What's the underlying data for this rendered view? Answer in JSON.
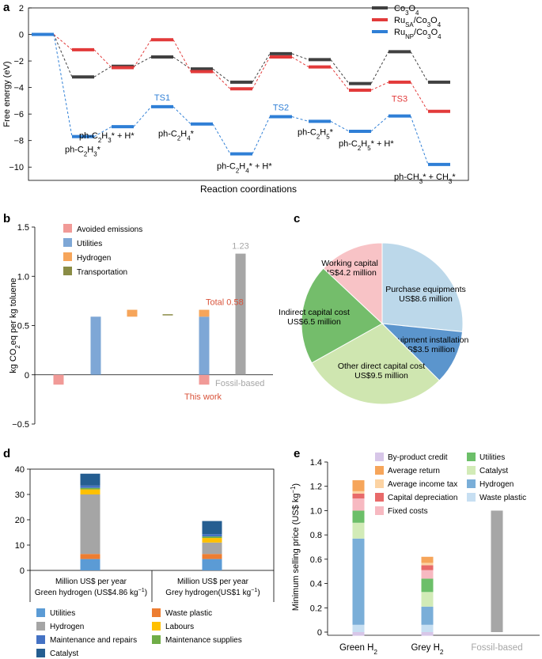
{
  "colors": {
    "co3o4": "#404040",
    "rusa": "#e23a3a",
    "runp": "#2f7fd6",
    "avoided": "#f19a97",
    "utilities": "#7ea7d6",
    "hydrogen": "#f6a55a",
    "transportation": "#8a8c45",
    "fossil": "#a6a6a6",
    "total_label": "#d9533a",
    "pie_working": "#f8c3c6",
    "pie_purchase": "#bcd8ea",
    "pie_install": "#5b95cd",
    "pie_other": "#cfe6b0",
    "pie_indirect": "#74bd6b",
    "d_utilities": "#5b9bd5",
    "d_hydrogen": "#a5a5a5",
    "d_maintenance_repairs": "#4472c4",
    "d_catalyst": "#255e91",
    "d_waste_plastic": "#ed7d31",
    "d_labours": "#ffc000",
    "d_maintenance_supplies": "#70ad47",
    "e_byproduct": "#d7c6e8",
    "e_avg_return": "#f6a55a",
    "e_avg_income_tax": "#fcd3a3",
    "e_capital_depr": "#e86a6a",
    "e_fixed": "#f7b9c1",
    "e_utilities": "#6cbf69",
    "e_catalyst": "#d2ebb7",
    "e_hydrogen": "#7aaed8",
    "e_waste_plastic": "#c7dff2",
    "e_fossil": "#a6a6a6"
  },
  "panel_labels": {
    "a": "a",
    "b": "b",
    "c": "c",
    "d": "d",
    "e": "e"
  },
  "chart_data": [
    {
      "id": "a",
      "type": "line",
      "title": "",
      "xlabel": "Reaction coordinations",
      "ylabel": "Free energy (eV)",
      "ylim": [
        -11,
        2
      ],
      "yticks": [
        2,
        0,
        -2,
        -4,
        -6,
        -8,
        -10
      ],
      "legend": [
        {
          "base": "Co",
          "sub1": "3",
          "mid": "O",
          "sub2": "4",
          "pre": "",
          "presub": ""
        },
        {
          "pre": "Ru",
          "presub": "SA",
          "base": "/Co",
          "sub1": "3",
          "mid": "O",
          "sub2": "4"
        },
        {
          "pre": "Ru",
          "presub": "NP",
          "base": "/Co",
          "sub1": "3",
          "mid": "O",
          "sub2": "4"
        }
      ],
      "series": [
        {
          "name": "Co3O4",
          "values": [
            0,
            -3.2,
            -2.4,
            -1.7,
            -2.6,
            -3.6,
            -1.45,
            -1.9,
            -3.7,
            -1.3,
            -3.6
          ]
        },
        {
          "name": "RuSA/Co3O4",
          "values": [
            0,
            -1.15,
            -2.5,
            -0.4,
            -2.8,
            -4.1,
            -1.7,
            -2.45,
            -4.2,
            -3.6,
            -5.8
          ]
        },
        {
          "name": "RuNP/Co3O4",
          "values": [
            0,
            -7.7,
            -6.95,
            -5.45,
            -6.75,
            -9.0,
            -6.2,
            -6.55,
            -7.3,
            -6.15,
            -9.8
          ]
        }
      ],
      "ts_labels": [
        "TS1",
        "TS2",
        "TS3"
      ],
      "state_labels": [
        "ph-C2H3*",
        "ph-C2H3* + H*",
        "ph-C2H4*",
        "ph-C2H4* + H*",
        "ph-C2H5*",
        "ph-C2H5* + H*",
        "ph-CH3* + CH3*"
      ]
    },
    {
      "id": "b",
      "type": "bar",
      "xlabel": "",
      "ylabel": "kg CO2eq per kg toluene",
      "ylim": [
        -0.5,
        1.5
      ],
      "yticks": [
        "1.5",
        "1.0",
        "0.5",
        "0",
        "−0.5"
      ],
      "legend": [
        "Avoided emissions",
        "Utilities",
        "Hydrogen",
        "Transportation"
      ],
      "bars": [
        {
          "name": "Avoided emissions",
          "base": 0,
          "value": -0.1
        },
        {
          "name": "Utilities",
          "base": 0,
          "value": 0.59
        },
        {
          "name": "Hydrogen",
          "base": 0.59,
          "value": 0.07
        },
        {
          "name": "Transportation",
          "base": 0.605,
          "value": 0.01
        },
        {
          "name": "This work",
          "stack": [
            {
              "name": "Avoided emissions",
              "value": -0.1
            },
            {
              "name": "Utilities",
              "value": 0.59
            },
            {
              "name": "Hydrogen",
              "value": 0.07
            }
          ]
        },
        {
          "name": "Fossil-based",
          "base": 0,
          "value": 1.23
        }
      ],
      "annotations": {
        "total": "Total 0.58",
        "fossil_value": "1.23",
        "this_work": "This work",
        "fossil": "Fossil-based"
      }
    },
    {
      "id": "c",
      "type": "pie",
      "slices": [
        {
          "name": "Working capital",
          "value": 4.2,
          "label": "US$4.2 million"
        },
        {
          "name": "Purchase equipments",
          "value": 8.6,
          "label": "US$8.6 million"
        },
        {
          "name": "Equipment installation",
          "value": 3.5,
          "label": "US$3.5 million"
        },
        {
          "name": "Other direct capital cost",
          "value": 9.5,
          "label": "US$9.5 million"
        },
        {
          "name": "Indirect capital cost",
          "value": 6.5,
          "label": "US$6.5 million"
        }
      ]
    },
    {
      "id": "d",
      "type": "bar",
      "ylim": [
        0,
        40
      ],
      "yticks": [
        "40",
        "30",
        "20",
        "10",
        "0"
      ],
      "categories": [
        [
          "Million US$ per year",
          "Green hydrogen (US$4.86 kg",
          "−1",
          ")"
        ],
        [
          "Million US$ per year",
          "Grey hydrogen(US$1 kg",
          "−1",
          ")"
        ]
      ],
      "series": [
        {
          "name": "Utilities",
          "values": [
            4.5,
            4.5
          ]
        },
        {
          "name": "Waste plastic",
          "values": [
            2.0,
            2.0
          ]
        },
        {
          "name": "Hydrogen",
          "values": [
            23.5,
            4.5
          ]
        },
        {
          "name": "Labours",
          "values": [
            2.0,
            1.8
          ]
        },
        {
          "name": "Maintenance supplies",
          "values": [
            0.6,
            0.6
          ]
        },
        {
          "name": "Maintenance and repairs",
          "values": [
            0.9,
            0.9
          ]
        },
        {
          "name": "Catalyst",
          "values": [
            4.7,
            5.2
          ]
        }
      ],
      "legend_order": [
        "Utilities",
        "Waste plastic",
        "Hydrogen",
        "Labours",
        "Maintenance and repairs",
        "Maintenance supplies",
        "Catalyst"
      ]
    },
    {
      "id": "e",
      "type": "bar",
      "ylabel": "Minimum selling price (US$ kg−1)",
      "ylim": [
        0,
        1.4
      ],
      "yticks": [
        "1.4",
        "1.2",
        "1.0",
        "0.8",
        "0.6",
        "0.4",
        "0.2",
        "0"
      ],
      "categories": [
        "Green H2",
        "Grey H2",
        "Fossil-based"
      ],
      "legend": [
        "By-product credit",
        "Average return",
        "Average income tax",
        "Capital depreciation",
        "Fixed costs",
        "Utilities",
        "Catalyst",
        "Hydrogen",
        "Waste plastic"
      ],
      "series": [
        {
          "name": "By-product credit",
          "values": [
            -0.03,
            -0.03,
            0
          ]
        },
        {
          "name": "Waste plastic",
          "values": [
            0.06,
            0.06,
            0
          ]
        },
        {
          "name": "Hydrogen",
          "values": [
            0.71,
            0.15,
            0
          ]
        },
        {
          "name": "Catalyst",
          "values": [
            0.13,
            0.12,
            0
          ]
        },
        {
          "name": "Utilities",
          "values": [
            0.1,
            0.11,
            0
          ]
        },
        {
          "name": "Fixed costs",
          "values": [
            0.1,
            0.07,
            0
          ]
        },
        {
          "name": "Capital depreciation",
          "values": [
            0.04,
            0.04,
            0
          ]
        },
        {
          "name": "Average income tax",
          "values": [
            0.02,
            0.02,
            0
          ]
        },
        {
          "name": "Average return",
          "values": [
            0.09,
            0.05,
            0
          ]
        },
        {
          "name": "Fossil-based",
          "values": [
            0,
            0,
            1.0
          ]
        }
      ]
    }
  ]
}
